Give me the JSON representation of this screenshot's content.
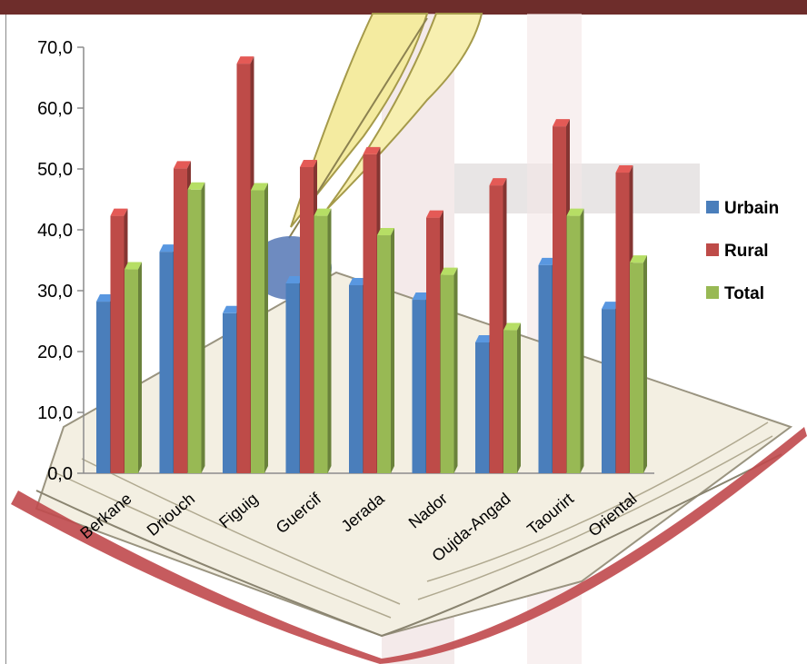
{
  "chart_data": {
    "type": "bar",
    "categories": [
      "Berkane",
      "Driouch",
      "Figuig",
      "Guercif",
      "Jerada",
      "Nador",
      "Oujda-Angad",
      "Taourirt",
      "Oriental"
    ],
    "series": [
      {
        "name": "Urbain",
        "color": "#4a7ebb",
        "values": [
          28.2,
          36.4,
          26.3,
          31.2,
          30.9,
          28.5,
          21.5,
          34.2,
          27.0
        ]
      },
      {
        "name": "Rural",
        "color": "#be4b48",
        "values": [
          42.3,
          50.1,
          67.3,
          50.3,
          52.4,
          42.0,
          47.3,
          57.0,
          49.4
        ]
      },
      {
        "name": "Total",
        "color": "#98b954",
        "values": [
          33.5,
          46.6,
          46.5,
          42.3,
          39.1,
          32.6,
          23.5,
          42.3,
          34.6
        ]
      }
    ],
    "y_ticks": [
      "0,0",
      "10,0",
      "20,0",
      "30,0",
      "40,0",
      "50,0",
      "60,0",
      "70,0"
    ],
    "ylim": [
      0,
      70
    ],
    "legend_position": "right",
    "grid": false,
    "title": "",
    "xlabel": "",
    "ylabel": ""
  }
}
